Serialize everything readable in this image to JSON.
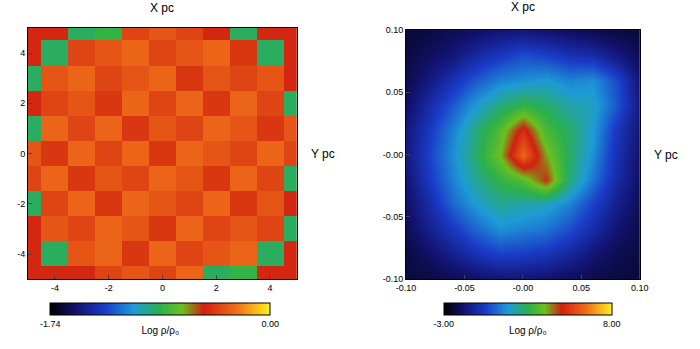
{
  "chart_data": [
    {
      "type": "heatmap",
      "title": "X pc",
      "ylabel": "Y pc",
      "x": [
        -5,
        -4,
        -3,
        -2,
        -1,
        0,
        1,
        2,
        3,
        4,
        5
      ],
      "y": [
        -5,
        -4,
        -3,
        -2,
        -1,
        0,
        1,
        2,
        3,
        4,
        5
      ],
      "cells": [
        [
          -0.5,
          -0.5,
          -0.5,
          -0.4,
          -0.35,
          -0.4,
          -0.3,
          -0.9,
          -0.85,
          -0.5,
          -0.5
        ],
        [
          -0.5,
          -0.9,
          -0.35,
          -0.3,
          -0.45,
          -0.3,
          -0.4,
          -0.35,
          -0.3,
          -0.9,
          -0.5
        ],
        [
          -0.5,
          -0.35,
          -0.4,
          -0.3,
          -0.35,
          -0.45,
          -0.3,
          -0.4,
          -0.35,
          -0.4,
          -0.9
        ],
        [
          -0.9,
          -0.4,
          -0.3,
          -0.45,
          -0.3,
          -0.35,
          -0.4,
          -0.3,
          -0.45,
          -0.35,
          -0.5
        ],
        [
          -0.4,
          -0.3,
          -0.45,
          -0.35,
          -0.4,
          -0.3,
          -0.35,
          -0.45,
          -0.3,
          -0.4,
          -0.9
        ],
        [
          -0.35,
          -0.45,
          -0.3,
          -0.4,
          -0.3,
          -0.45,
          -0.3,
          -0.35,
          -0.4,
          -0.3,
          -0.4
        ],
        [
          -0.9,
          -0.3,
          -0.4,
          -0.3,
          -0.45,
          -0.35,
          -0.4,
          -0.3,
          -0.35,
          -0.45,
          -0.35
        ],
        [
          -0.5,
          -0.4,
          -0.35,
          -0.45,
          -0.3,
          -0.4,
          -0.3,
          -0.45,
          -0.3,
          -0.4,
          -0.9
        ],
        [
          -0.9,
          -0.35,
          -0.3,
          -0.4,
          -0.35,
          -0.3,
          -0.45,
          -0.35,
          -0.4,
          -0.35,
          -0.5
        ],
        [
          -0.5,
          -0.9,
          -0.4,
          -0.35,
          -0.3,
          -0.4,
          -0.35,
          -0.3,
          -0.45,
          -0.9,
          -0.5
        ],
        [
          -0.5,
          -0.5,
          -0.9,
          -0.85,
          -0.4,
          -0.35,
          -0.4,
          -0.5,
          -0.9,
          -0.5,
          -0.5
        ]
      ],
      "xlim": [
        -5,
        5
      ],
      "xticks": [
        -4,
        -2,
        0,
        2,
        4
      ],
      "ylim": [
        -5,
        5
      ],
      "yticks": [
        -4,
        -2,
        0,
        2,
        4
      ],
      "zlabel": "Log ρ/ρ₀",
      "zlim": [
        -1.74,
        0
      ],
      "zticks": [
        -1.74,
        {
          "value": 0,
          "label": "0.00"
        }
      ]
    },
    {
      "type": "heatmap",
      "title": "X pc",
      "ylabel": "Y pc",
      "x": [
        -0.1,
        -0.08,
        -0.06,
        -0.04,
        -0.02,
        0,
        0.02,
        0.04,
        0.06,
        0.08,
        0.1
      ],
      "y": [
        -0.1,
        -0.08,
        -0.06,
        -0.04,
        -0.02,
        0,
        0.02,
        0.04,
        0.06,
        0.08,
        0.1
      ],
      "cells": [
        [
          -2.3,
          -2.2,
          -2.0,
          -1.8,
          -1.6,
          -1.6,
          -1.7,
          -1.9,
          -2.1,
          -2.2,
          -2.3
        ],
        [
          -2.2,
          -1.8,
          -1.2,
          -0.6,
          -0.2,
          -0.3,
          -0.5,
          -1.0,
          -1.6,
          -2.0,
          -2.2
        ],
        [
          -2.0,
          -1.2,
          -0.4,
          0.4,
          1.0,
          0.8,
          0.6,
          0.0,
          -0.8,
          -1.6,
          -2.1
        ],
        [
          -1.8,
          -0.8,
          0.4,
          1.2,
          1.8,
          1.6,
          1.4,
          0.8,
          -0.2,
          -1.2,
          -2.0
        ],
        [
          -1.6,
          -0.4,
          0.8,
          1.8,
          2.6,
          3.2,
          4.6,
          2.0,
          0.6,
          -0.8,
          -1.8
        ],
        [
          -1.4,
          -0.2,
          1.0,
          2.2,
          3.6,
          6.2,
          3.8,
          2.2,
          1.0,
          -0.6,
          -1.7
        ],
        [
          -1.5,
          -0.4,
          0.8,
          2.0,
          3.2,
          5.0,
          3.0,
          2.2,
          1.2,
          -0.4,
          -1.6
        ],
        [
          -1.8,
          -0.8,
          0.2,
          1.2,
          2.0,
          2.6,
          2.2,
          1.6,
          1.4,
          0.2,
          -1.4
        ],
        [
          -2.1,
          -1.4,
          -0.6,
          0.2,
          0.8,
          1.0,
          1.2,
          0.8,
          1.0,
          0.0,
          -1.6
        ],
        [
          -2.2,
          -1.9,
          -1.5,
          -0.9,
          -0.4,
          0.0,
          -0.2,
          -0.6,
          -0.8,
          -1.4,
          -2.0
        ],
        [
          -2.3,
          -2.2,
          -2.0,
          -1.8,
          -1.6,
          -1.5,
          -1.7,
          -1.9,
          -2.1,
          -2.2,
          -2.3
        ]
      ],
      "xlim": [
        -0.1,
        0.1
      ],
      "xticks": [
        {
          "value": -0.1,
          "label": "-0.10"
        },
        {
          "value": -0.05,
          "label": "-0.05"
        },
        {
          "value": 0,
          "label": "-0.00"
        },
        0.05,
        {
          "value": 0.1,
          "label": "0.10"
        }
      ],
      "ylim": [
        -0.1,
        0.1
      ],
      "yticks": [
        {
          "value": -0.1,
          "label": "-0.10"
        },
        {
          "value": -0.05,
          "label": "-0.05"
        },
        {
          "value": 0,
          "label": "-0.00"
        },
        0.05,
        {
          "value": 0.1,
          "label": "0.10"
        }
      ],
      "zlabel": "Log ρ/ρ₀",
      "zlim": [
        -3,
        8
      ],
      "zticks": [
        {
          "value": -3,
          "label": "-3.00"
        },
        {
          "value": 8,
          "label": "8.00"
        }
      ]
    }
  ]
}
